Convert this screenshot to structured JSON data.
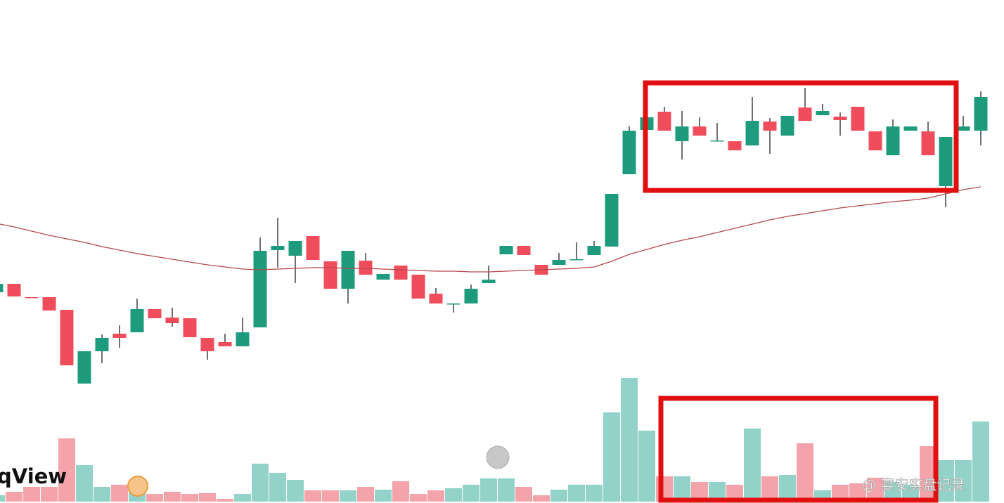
{
  "chart_data": {
    "type": "candlestick",
    "logo": "qView",
    "watermark": "@ 宴安实盘记录",
    "up_color": "#1e9a7c",
    "down_color": "#ef4d5c",
    "volume_up_color": "#93d2c8",
    "volume_down_color": "#f5a3ab",
    "ma_color": "#b5484c",
    "ylim": [
      0,
      716
    ],
    "vlim": [
      0,
      200
    ],
    "open": [
      300,
      312,
      293,
      293,
      275,
      170,
      216,
      241,
      243,
      276,
      264,
      263,
      235,
      229,
      223,
      250,
      360,
      352,
      380,
      344,
      305,
      345,
      318,
      338,
      325,
      298,
      283,
      284,
      313,
      354,
      366,
      339,
      339,
      346,
      353,
      365,
      468,
      531,
      557,
      515,
      536,
      515,
      515,
      509,
      543,
      523,
      563,
      552,
      550,
      564,
      529,
      495,
      530,
      529,
      451,
      530,
      530
    ],
    "high": [
      312,
      312,
      293,
      293,
      275,
      216,
      240,
      253,
      291,
      276,
      278,
      263,
      235,
      241,
      264,
      378,
      406,
      373,
      380,
      344,
      359,
      356,
      326,
      338,
      325,
      306,
      284,
      311,
      338,
      366,
      366,
      339,
      356,
      371,
      373,
      440,
      536,
      549,
      564,
      558,
      549,
      541,
      515,
      578,
      548,
      551,
      591,
      568,
      556,
      564,
      529,
      546,
      536,
      543,
      521,
      551,
      586
    ],
    "low": [
      300,
      294,
      292,
      274,
      196,
      170,
      199,
      221,
      243,
      263,
      251,
      236,
      204,
      223,
      223,
      250,
      335,
      313,
      346,
      305,
      284,
      325,
      318,
      318,
      291,
      284,
      271,
      284,
      313,
      354,
      353,
      325,
      339,
      346,
      353,
      365,
      468,
      531,
      530,
      489,
      523,
      515,
      502,
      509,
      497,
      523,
      544,
      552,
      523,
      530,
      502,
      495,
      530,
      495,
      421,
      530,
      509
    ],
    "close": [
      312,
      294,
      292,
      274,
      196,
      216,
      235,
      235,
      276,
      263,
      256,
      236,
      216,
      223,
      243,
      359,
      366,
      373,
      346,
      305,
      359,
      325,
      326,
      318,
      291,
      284,
      284,
      305,
      318,
      366,
      353,
      325,
      346,
      347,
      366,
      440,
      530,
      549,
      530,
      536,
      523,
      516,
      502,
      544,
      530,
      551,
      544,
      558,
      545,
      530,
      502,
      536,
      536,
      495,
      521,
      536,
      578
    ],
    "volume": [
      9,
      14,
      21,
      21,
      90,
      52,
      21,
      24,
      14,
      11,
      14,
      11,
      12,
      4,
      11,
      54,
      41,
      31,
      16,
      16,
      16,
      21,
      17,
      29,
      11,
      16,
      19,
      24,
      33,
      33,
      21,
      9,
      17,
      24,
      24,
      127,
      176,
      101,
      36,
      36,
      28,
      28,
      24,
      104,
      36,
      38,
      83,
      16,
      24,
      26,
      34,
      28,
      24,
      79,
      59,
      59,
      114
    ],
    "ma": [
      398,
      393,
      387,
      381,
      376,
      371,
      365,
      360,
      355,
      351,
      347,
      343,
      339,
      336,
      333,
      332,
      333,
      334,
      335,
      335,
      334,
      334,
      333,
      332,
      331,
      330,
      330,
      329,
      329,
      330,
      331,
      332,
      333,
      334,
      336,
      344,
      354,
      361,
      368,
      374,
      379,
      385,
      391,
      397,
      403,
      408,
      412,
      416,
      420,
      423,
      426,
      429,
      431,
      434,
      440,
      446,
      450
    ]
  }
}
